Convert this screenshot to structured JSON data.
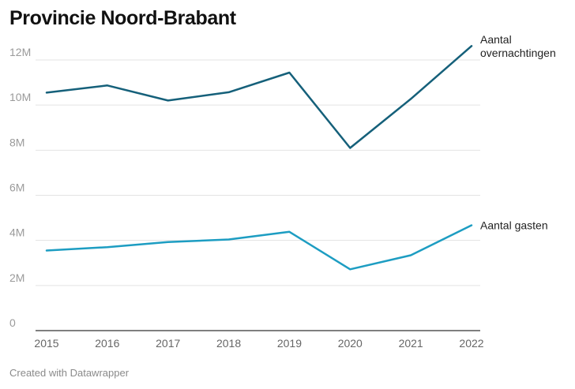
{
  "title": "Provincie Noord-Brabant",
  "footer": "Created with Datawrapper",
  "chart_data": {
    "type": "line",
    "categories": [
      "2015",
      "2016",
      "2017",
      "2018",
      "2019",
      "2020",
      "2021",
      "2022"
    ],
    "x": [
      2015,
      2016,
      2017,
      2018,
      2019,
      2020,
      2021,
      2022
    ],
    "ylim": [
      0,
      12000000
    ],
    "yticks": [
      0,
      2000000,
      4000000,
      6000000,
      8000000,
      10000000,
      12000000
    ],
    "ytick_labels": [
      "0",
      "2M",
      "4M",
      "6M",
      "8M",
      "10M",
      "12M"
    ],
    "grid": true,
    "series": [
      {
        "name": "Aantal overnachtingen",
        "label_lines": [
          "Aantal",
          "overnachtingen"
        ],
        "color": "#15607a",
        "values": [
          10550000,
          10870000,
          10200000,
          10570000,
          11440000,
          8100000,
          10270000,
          12620000
        ]
      },
      {
        "name": "Aantal gasten",
        "label_lines": [
          "Aantal gasten"
        ],
        "color": "#1d9dc2",
        "values": [
          3550000,
          3700000,
          3930000,
          4040000,
          4380000,
          2720000,
          3340000,
          4670000
        ]
      }
    ]
  }
}
